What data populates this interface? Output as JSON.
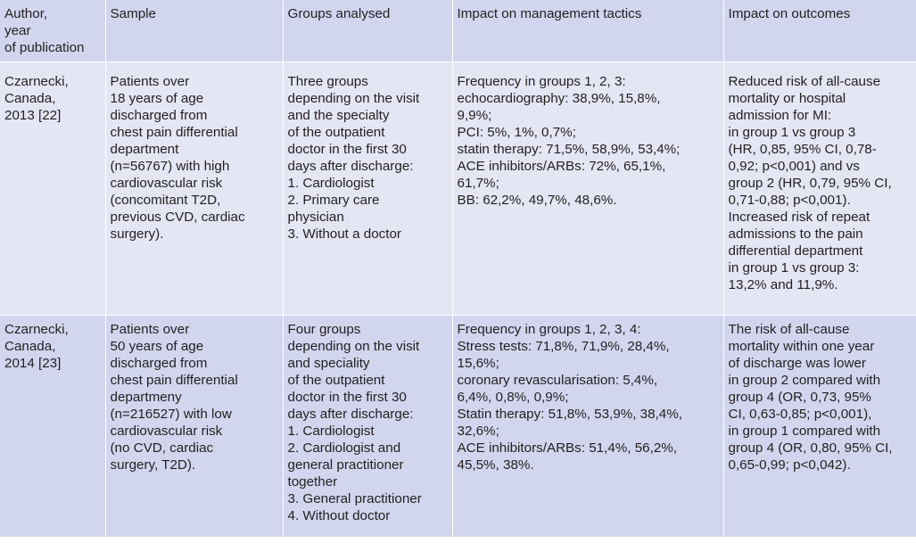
{
  "table": {
    "headers": [
      "Author,\nyear\nof publication",
      "Sample",
      "Groups analysed",
      "Impact on management tactics",
      "Impact on outcomes"
    ],
    "rows": [
      [
        "Czarnecki,\nCanada,\n2013 [22]",
        "Patients over\n18 years of age\ndischarged from\nchest pain differential\ndepartment\n(n=56767) with high\ncardiovascular risk\n(concomitant T2D,\nprevious CVD, cardiac\nsurgery).",
        "Three groups\ndepending on the visit\nand the specialty\nof the outpatient\ndoctor in the first 30\ndays after discharge:\n1. Cardiologist\n2. Primary care\nphysician\n3. Without a doctor",
        "Frequency in groups 1, 2, 3:\nechocardiography: 38,9%, 15,8%,\n9,9%;\nPCI: 5%, 1%, 0,7%;\nstatin therapy: 71,5%, 58,9%, 53,4%;\nACE inhibitors/ARBs: 72%, 65,1%,\n61,7%;\nBB: 62,2%, 49,7%, 48,6%.",
        "Reduced risk of all-cause\nmortality or hospital\nadmission for MI:\nin group 1 vs group 3\n(HR, 0,85, 95% CI, 0,78-\n0,92; p<0,001) and vs\ngroup 2 (HR, 0,79, 95% CI,\n0,71-0,88; p<0,001).\nIncreased risk of repeat\nadmissions to the pain\ndifferential department\nin group 1 vs group 3:\n13,2% and 11,9%."
      ],
      [
        "Czarnecki,\nCanada,\n2014 [23]",
        "Patients over\n50 years of age\ndischarged from\nchest pain differential\ndepartmeny\n(n=216527) with low\ncardiovascular risk\n(no CVD, cardiac\nsurgery, T2D).",
        "Four groups\ndepending on the visit\nand speciality\nof the outpatient\ndoctor in the first 30\ndays after discharge:\n1. Cardiologist\n2. Cardiologist and\ngeneral practitioner\ntogether\n3. General practitioner\n4. Without doctor",
        "Frequency in groups 1, 2, 3, 4:\nStress tests: 71,8%, 71,9%, 28,4%,\n15,6%;\ncoronary revascularisation: 5,4%,\n6,4%, 0,8%, 0,9%;\nStatin therapy: 51,8%, 53,9%, 38,4%,\n32,6%;\nACE inhibitors/ARBs: 51,4%, 56,2%,\n45,5%, 38%.",
        "The risk of all-cause\nmortality within one year\nof discharge was lower\nin group 2 compared with\ngroup 4 (OR, 0,73, 95%\nCI, 0,63-0,85; p<0,001),\nin group 1 compared with\ngroup 4 (OR, 0,80, 95% CI,\n0,65-0,99; p<0,042)."
      ]
    ]
  }
}
